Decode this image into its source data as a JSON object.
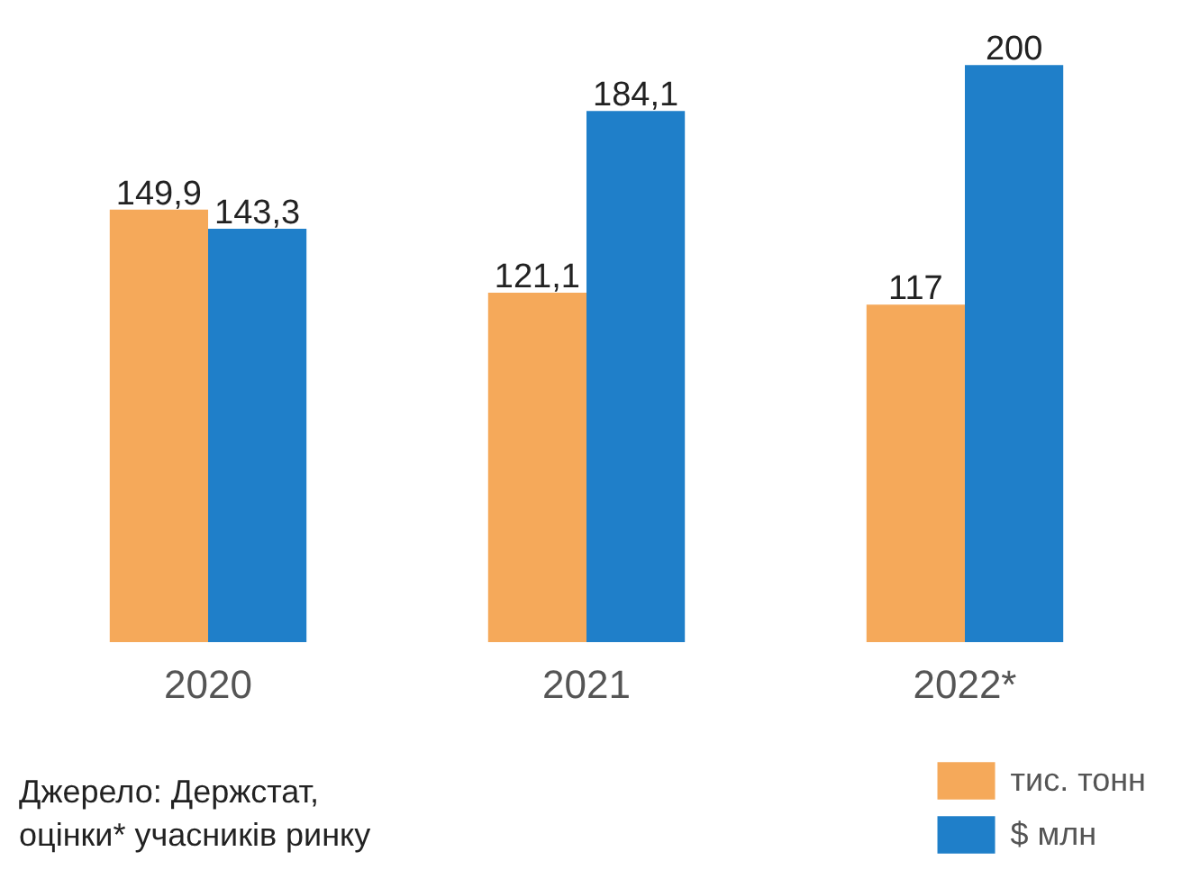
{
  "chart_data": {
    "type": "bar",
    "categories": [
      "2020",
      "2021",
      "2022*"
    ],
    "series": [
      {
        "name": "тис. тонн",
        "color": "#f5a95a",
        "values": [
          149.9,
          121.1,
          117
        ],
        "value_labels": [
          "149,9",
          "121,1",
          "117"
        ]
      },
      {
        "name": "$ млн",
        "color": "#1f7fc9",
        "values": [
          143.3,
          184.1,
          200
        ],
        "value_labels": [
          "143,3",
          "184,1",
          "200"
        ]
      }
    ],
    "tick_labels": "x",
    "grid": false,
    "legend": "bottom right",
    "annotations": [
      "Джерело: Держстат,\nоцінки* учасників ринку"
    ]
  }
}
